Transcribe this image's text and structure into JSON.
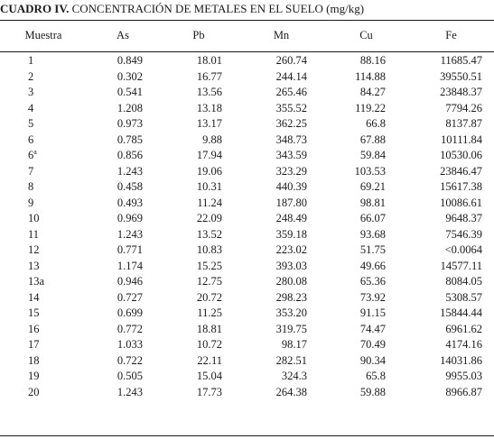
{
  "caption": {
    "label": "CUADRO IV.",
    "text": "CONCENTRACIÓN DE METALES EN EL SUELO (mg/kg)"
  },
  "table": {
    "headers": [
      "Muestra",
      "As",
      "Pb",
      "Mn",
      "Cu",
      "Fe"
    ],
    "rows": [
      {
        "sample": "1",
        "sup": "",
        "as": "0.849",
        "pb": "18.01",
        "mn": "260.74",
        "cu": "88.16",
        "fe": "11685.47"
      },
      {
        "sample": "2",
        "sup": "",
        "as": "0.302",
        "pb": "16.77",
        "mn": "244.14",
        "cu": "114.88",
        "fe": "39550.51"
      },
      {
        "sample": "3",
        "sup": "",
        "as": "0.541",
        "pb": "13.56",
        "mn": "265.46",
        "cu": "84.27",
        "fe": "23848.37"
      },
      {
        "sample": "4",
        "sup": "",
        "as": "1.208",
        "pb": "13.18",
        "mn": "355.52",
        "cu": "119.22",
        "fe": "7794.26"
      },
      {
        "sample": "5",
        "sup": "",
        "as": "0.973",
        "pb": "13.17",
        "mn": "362.25",
        "cu": "66.8",
        "fe": "8137.87"
      },
      {
        "sample": "6",
        "sup": "",
        "as": "0.785",
        "pb": "9.88",
        "mn": "348.73",
        "cu": "67.88",
        "fe": "10111.84"
      },
      {
        "sample": "6",
        "sup": "a",
        "as": "0.856",
        "pb": "17.94",
        "mn": "343.59",
        "cu": "59.84",
        "fe": "10530.06"
      },
      {
        "sample": "7",
        "sup": "",
        "as": "1.243",
        "pb": "19.06",
        "mn": "323.29",
        "cu": "103.53",
        "fe": "23846.47"
      },
      {
        "sample": "8",
        "sup": "",
        "as": "0.458",
        "pb": "10.31",
        "mn": "440.39",
        "cu": "69.21",
        "fe": "15617.38"
      },
      {
        "sample": "9",
        "sup": "",
        "as": "0.493",
        "pb": "11.24",
        "mn": "187.80",
        "cu": "98.81",
        "fe": "10086.61"
      },
      {
        "sample": "10",
        "sup": "",
        "as": "0.969",
        "pb": "22.09",
        "mn": "248.49",
        "cu": "66.07",
        "fe": "9648.37"
      },
      {
        "sample": "11",
        "sup": "",
        "as": "1.243",
        "pb": "13.52",
        "mn": "359.18",
        "cu": "93.68",
        "fe": "7546.39"
      },
      {
        "sample": "12",
        "sup": "",
        "as": "0.771",
        "pb": "10.83",
        "mn": "223.02",
        "cu": "51.75",
        "fe": "<0.0064"
      },
      {
        "sample": "13",
        "sup": "",
        "as": "1.174",
        "pb": "15.25",
        "mn": "393.03",
        "cu": "49.66",
        "fe": "14577.11"
      },
      {
        "sample": "13a",
        "sup": "",
        "as": "0.946",
        "pb": "12.75",
        "mn": "280.08",
        "cu": "65.36",
        "fe": "8084.05"
      },
      {
        "sample": "14",
        "sup": "",
        "as": "0.727",
        "pb": "20.72",
        "mn": "298.23",
        "cu": "73.92",
        "fe": "5308.57"
      },
      {
        "sample": "15",
        "sup": "",
        "as": "0.699",
        "pb": "11.25",
        "mn": "353.20",
        "cu": "91.15",
        "fe": "15844.44"
      },
      {
        "sample": "16",
        "sup": "",
        "as": "0.772",
        "pb": "18.81",
        "mn": "319.75",
        "cu": "74.47",
        "fe": "6961.62"
      },
      {
        "sample": "17",
        "sup": "",
        "as": "1.033",
        "pb": "10.72",
        "mn": "98.17",
        "cu": "70.49",
        "fe": "4174.16"
      },
      {
        "sample": "18",
        "sup": "",
        "as": "0.722",
        "pb": "22.11",
        "mn": "282.51",
        "cu": "90.34",
        "fe": "14031.86"
      },
      {
        "sample": "19",
        "sup": "",
        "as": "0.505",
        "pb": "15.04",
        "mn": "324.3",
        "cu": "65.8",
        "fe": "9955.03"
      },
      {
        "sample": "20",
        "sup": "",
        "as": "1.243",
        "pb": "17.73",
        "mn": "264.38",
        "cu": "59.88",
        "fe": "8966.87"
      }
    ]
  }
}
